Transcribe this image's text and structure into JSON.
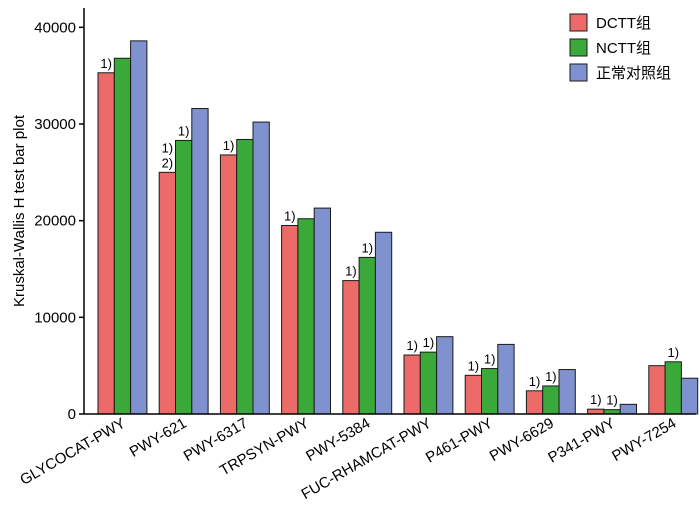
{
  "chart_data": {
    "type": "bar",
    "ylabel": "Kruskal-Wallis H test bar plot",
    "ylim": [
      0,
      42000
    ],
    "yticks": [
      0,
      10000,
      20000,
      30000,
      40000
    ],
    "categories": [
      "GLYCOCAT-PWY",
      "PWY-621",
      "PWY-6317",
      "TRPSYN-PWY",
      "PWY-5384",
      "FUC-RHAMCAT-PWY",
      "P461-PWY",
      "PWY-6629",
      "P341-PWY",
      "PWY-7254"
    ],
    "series": [
      {
        "name": "DCTT组",
        "color": "#ec6b69",
        "values": [
          35300,
          25000,
          26800,
          19500,
          13800,
          6100,
          4000,
          2400,
          500,
          5000
        ]
      },
      {
        "name": "NCTT组",
        "color": "#3aa93a",
        "values": [
          36800,
          28300,
          28400,
          20200,
          16200,
          6400,
          4700,
          2900,
          450,
          5400
        ]
      },
      {
        "name": "正常对照组",
        "color": "#7f91cf",
        "values": [
          38600,
          31600,
          30200,
          21300,
          18800,
          8000,
          7200,
          4600,
          1000,
          3700
        ]
      }
    ],
    "annotations": [
      {
        "category": 0,
        "series": 0,
        "text": "1)"
      },
      {
        "category": 1,
        "series": 0,
        "text": "1)"
      },
      {
        "category": 1,
        "series": 0,
        "text": "2)"
      },
      {
        "category": 1,
        "series": 1,
        "text": "1)"
      },
      {
        "category": 2,
        "series": 0,
        "text": "1)"
      },
      {
        "category": 3,
        "series": 0,
        "text": "1)"
      },
      {
        "category": 4,
        "series": 0,
        "text": "1)"
      },
      {
        "category": 4,
        "series": 1,
        "text": "1)"
      },
      {
        "category": 5,
        "series": 0,
        "text": "1)"
      },
      {
        "category": 5,
        "series": 1,
        "text": "1)"
      },
      {
        "category": 6,
        "series": 0,
        "text": "1)"
      },
      {
        "category": 6,
        "series": 1,
        "text": "1)"
      },
      {
        "category": 7,
        "series": 0,
        "text": "1)"
      },
      {
        "category": 7,
        "series": 1,
        "text": "1)"
      },
      {
        "category": 8,
        "series": 0,
        "text": "1)"
      },
      {
        "category": 8,
        "series": 1,
        "text": "1)"
      },
      {
        "category": 9,
        "series": 1,
        "text": "1)"
      }
    ],
    "legend_position": "top-right",
    "grid": false
  }
}
